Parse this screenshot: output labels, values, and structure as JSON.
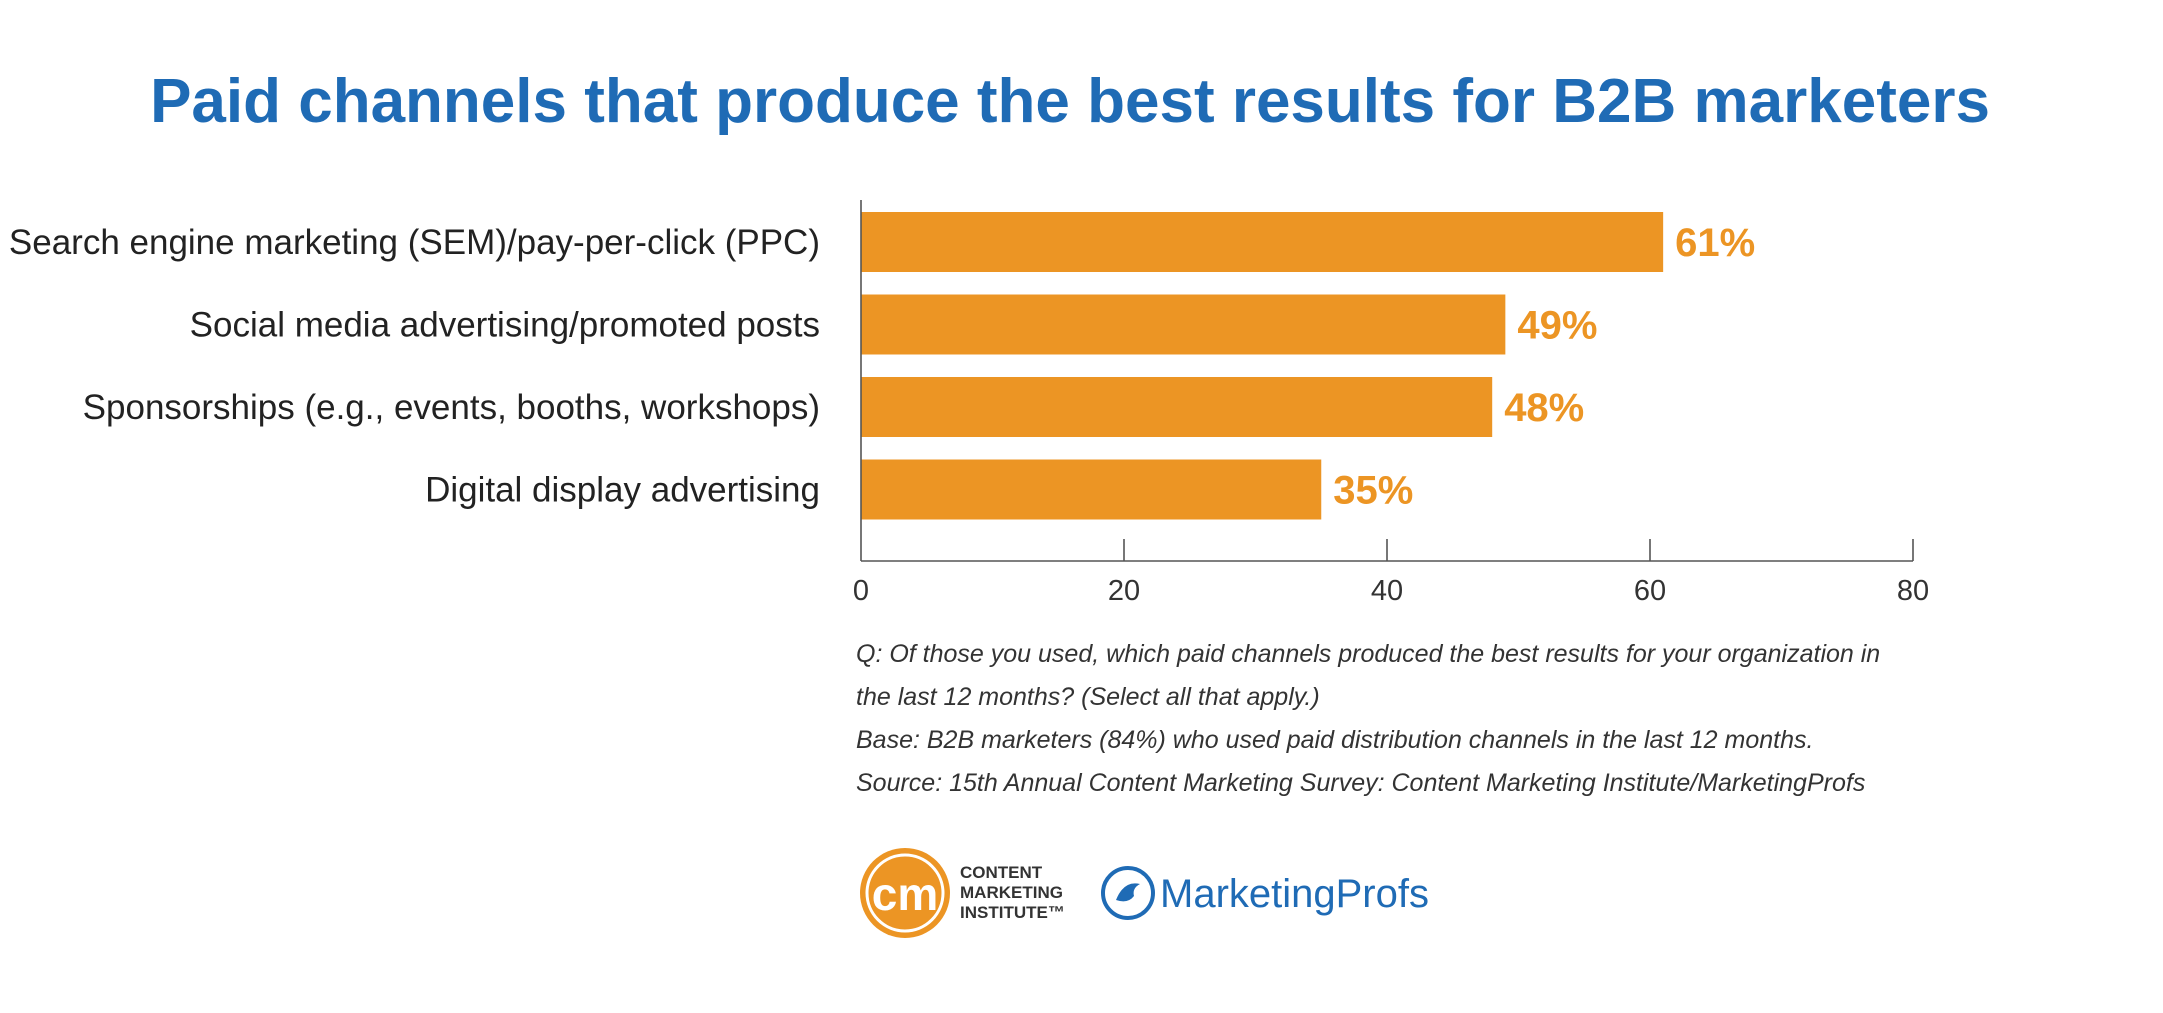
{
  "chart_data": {
    "type": "bar",
    "orientation": "horizontal",
    "title": "Paid channels that produce the best results for B2B marketers",
    "categories": [
      "Search engine marketing (SEM)/pay-per-click (PPC)",
      "Social media advertising/promoted posts",
      "Sponsorships (e.g., events, booths, workshops)",
      "Digital display advertising"
    ],
    "values": [
      61,
      49,
      48,
      35
    ],
    "value_labels": [
      "61%",
      "49%",
      "48%",
      "35%"
    ],
    "xlim": [
      0,
      80
    ],
    "x_ticks": [
      0,
      20,
      40,
      60,
      80
    ],
    "x_tick_labels": [
      "0",
      "20",
      "40",
      "60",
      "80"
    ],
    "grid": false,
    "legend": "none",
    "bar_color": "#ec9524",
    "title_color": "#1f6bb5"
  },
  "notes": [
    "Q: Of those you used, which paid channels produced the best results for your organization in",
    "the last 12 months? (Select all that apply.)",
    "Base: B2B marketers (84%) who used paid distribution channels in the last 12 months.",
    "Source: 15th Annual Content Marketing Survey: Content Marketing Institute/MarketingProfs"
  ],
  "logos": {
    "cmi": {
      "monogram": "cm",
      "lines": [
        "CONTENT",
        "MARKETING",
        "INSTITUTE™"
      ],
      "color": "#ec9524"
    },
    "marketingprofs": {
      "text": "MarketingProfs",
      "color": "#1f6bb5"
    }
  }
}
